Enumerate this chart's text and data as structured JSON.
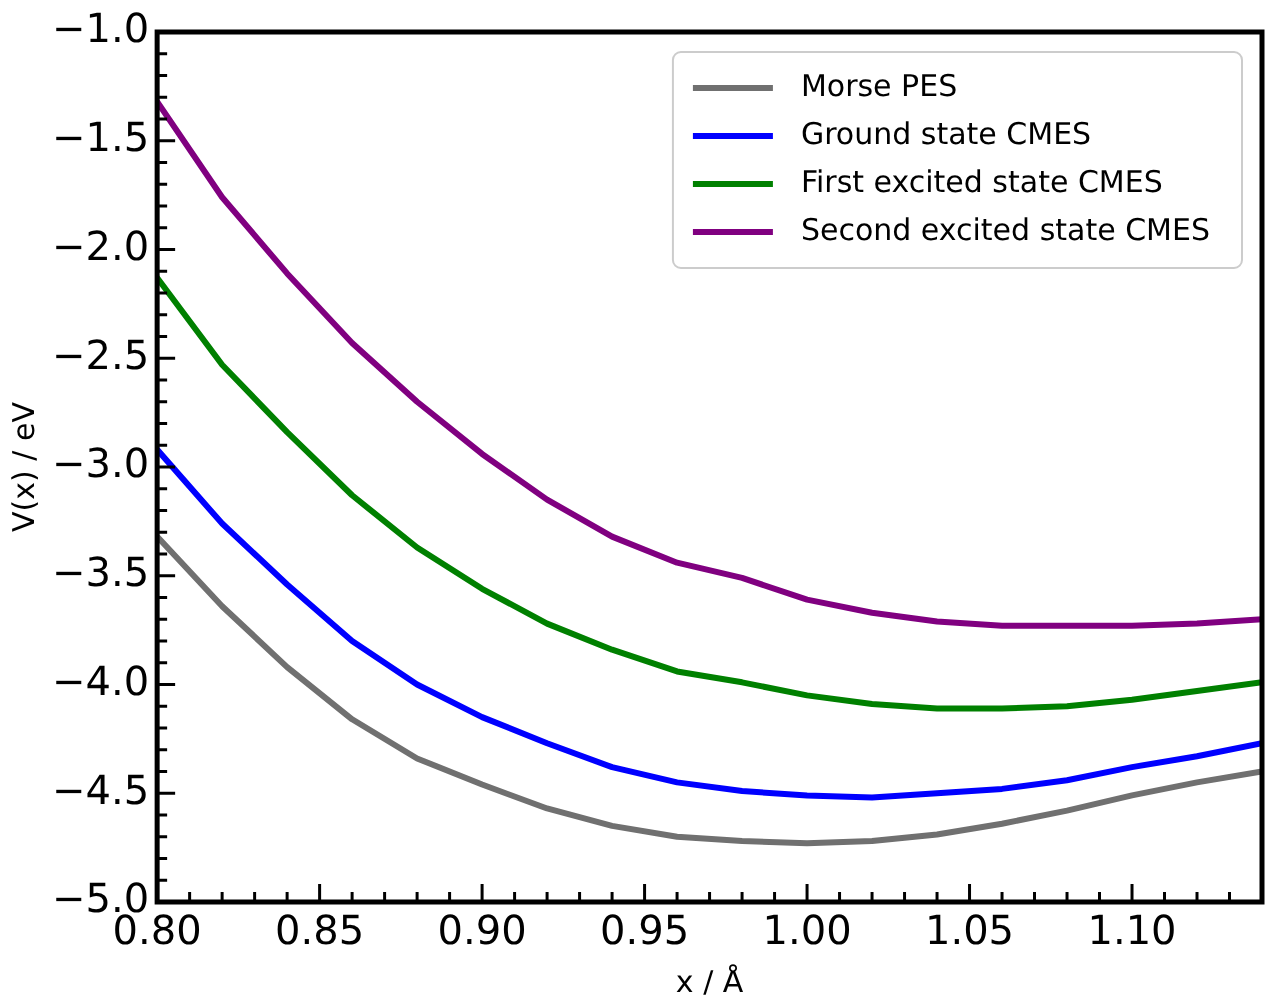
{
  "chart_data": {
    "type": "line",
    "xlabel": "x / Å",
    "ylabel": "V(x) / eV",
    "x": [
      0.8,
      0.82,
      0.84,
      0.86,
      0.88,
      0.9,
      0.92,
      0.94,
      0.96,
      0.98,
      1.0,
      1.02,
      1.04,
      1.06,
      1.08,
      1.1,
      1.12,
      1.14
    ],
    "series": [
      {
        "name": "Morse PES",
        "color": "#707070",
        "values": [
          -3.32,
          -3.64,
          -3.92,
          -4.16,
          -4.34,
          -4.46,
          -4.57,
          -4.65,
          -4.7,
          -4.72,
          -4.73,
          -4.72,
          -4.69,
          -4.64,
          -4.58,
          -4.51,
          -4.45,
          -4.4
        ]
      },
      {
        "name": "Ground state CMES",
        "color": "#0000ff",
        "values": [
          -2.92,
          -3.26,
          -3.54,
          -3.8,
          -4.0,
          -4.15,
          -4.27,
          -4.38,
          -4.45,
          -4.49,
          -4.51,
          -4.52,
          -4.5,
          -4.48,
          -4.44,
          -4.38,
          -4.33,
          -4.27
        ]
      },
      {
        "name": "First excited state CMES",
        "color": "#008000",
        "values": [
          -2.13,
          -2.53,
          -2.84,
          -3.13,
          -3.37,
          -3.56,
          -3.72,
          -3.84,
          -3.94,
          -3.99,
          -4.05,
          -4.09,
          -4.11,
          -4.11,
          -4.1,
          -4.07,
          -4.03,
          -3.99
        ]
      },
      {
        "name": "Second excited state CMES",
        "color": "#800080",
        "values": [
          -1.32,
          -1.76,
          -2.11,
          -2.43,
          -2.7,
          -2.94,
          -3.15,
          -3.32,
          -3.44,
          -3.51,
          -3.61,
          -3.67,
          -3.71,
          -3.73,
          -3.73,
          -3.73,
          -3.72,
          -3.7
        ]
      }
    ],
    "xlim": [
      0.8,
      1.14
    ],
    "xticks": [
      {
        "value": 0.8,
        "label": "0.80"
      },
      {
        "value": 0.81,
        "label": null
      },
      {
        "value": 0.82,
        "label": null
      },
      {
        "value": 0.83,
        "label": null
      },
      {
        "value": 0.84,
        "label": null
      },
      {
        "value": 0.85,
        "label": "0.85"
      },
      {
        "value": 0.86,
        "label": null
      },
      {
        "value": 0.87,
        "label": null
      },
      {
        "value": 0.88,
        "label": null
      },
      {
        "value": 0.89,
        "label": null
      },
      {
        "value": 0.9,
        "label": "0.90"
      },
      {
        "value": 0.91,
        "label": null
      },
      {
        "value": 0.92,
        "label": null
      },
      {
        "value": 0.93,
        "label": null
      },
      {
        "value": 0.94,
        "label": null
      },
      {
        "value": 0.95,
        "label": "0.95"
      },
      {
        "value": 0.96,
        "label": null
      },
      {
        "value": 0.97,
        "label": null
      },
      {
        "value": 0.98,
        "label": null
      },
      {
        "value": 0.99,
        "label": null
      },
      {
        "value": 1.0,
        "label": "1.00"
      },
      {
        "value": 1.01,
        "label": null
      },
      {
        "value": 1.02,
        "label": null
      },
      {
        "value": 1.03,
        "label": null
      },
      {
        "value": 1.04,
        "label": null
      },
      {
        "value": 1.05,
        "label": "1.05"
      },
      {
        "value": 1.06,
        "label": null
      },
      {
        "value": 1.07,
        "label": null
      },
      {
        "value": 1.08,
        "label": null
      },
      {
        "value": 1.09,
        "label": null
      },
      {
        "value": 1.1,
        "label": "1.10"
      },
      {
        "value": 1.11,
        "label": null
      },
      {
        "value": 1.12,
        "label": null
      },
      {
        "value": 1.13,
        "label": null
      }
    ],
    "ylim": [
      -5,
      -1
    ],
    "yticks": [
      {
        "value": -5,
        "label": "−5.0"
      },
      {
        "value": -4.9,
        "label": null
      },
      {
        "value": -4.8,
        "label": null
      },
      {
        "value": -4.7,
        "label": null
      },
      {
        "value": -4.6,
        "label": null
      },
      {
        "value": -4.5,
        "label": "−4.5"
      },
      {
        "value": -4.4,
        "label": null
      },
      {
        "value": -4.3,
        "label": null
      },
      {
        "value": -4.2,
        "label": null
      },
      {
        "value": -4.1,
        "label": null
      },
      {
        "value": -4,
        "label": "−4.0"
      },
      {
        "value": -3.9,
        "label": null
      },
      {
        "value": -3.8,
        "label": null
      },
      {
        "value": -3.7,
        "label": null
      },
      {
        "value": -3.6,
        "label": null
      },
      {
        "value": -3.5,
        "label": "−3.5"
      },
      {
        "value": -3.4,
        "label": null
      },
      {
        "value": -3.3,
        "label": null
      },
      {
        "value": -3.2,
        "label": null
      },
      {
        "value": -3.1,
        "label": null
      },
      {
        "value": -3,
        "label": "−3.0"
      },
      {
        "value": -2.9,
        "label": null
      },
      {
        "value": -2.8,
        "label": null
      },
      {
        "value": -2.7,
        "label": null
      },
      {
        "value": -2.6,
        "label": null
      },
      {
        "value": -2.5,
        "label": "−2.5"
      },
      {
        "value": -2.4,
        "label": null
      },
      {
        "value": -2.3,
        "label": null
      },
      {
        "value": -2.2,
        "label": null
      },
      {
        "value": -2.1,
        "label": null
      },
      {
        "value": -2,
        "label": "−2.0"
      },
      {
        "value": -1.9,
        "label": null
      },
      {
        "value": -1.8,
        "label": null
      },
      {
        "value": -1.7,
        "label": null
      },
      {
        "value": -1.6,
        "label": null
      },
      {
        "value": -1.5,
        "label": "−1.5"
      },
      {
        "value": -1.4,
        "label": null
      },
      {
        "value": -1.3,
        "label": null
      },
      {
        "value": -1.2,
        "label": null
      },
      {
        "value": -1.1,
        "label": null
      },
      {
        "value": -1,
        "label": "−1.0"
      }
    ],
    "grid": false,
    "legend": "top right",
    "marker": "none",
    "line_style": "solid"
  }
}
